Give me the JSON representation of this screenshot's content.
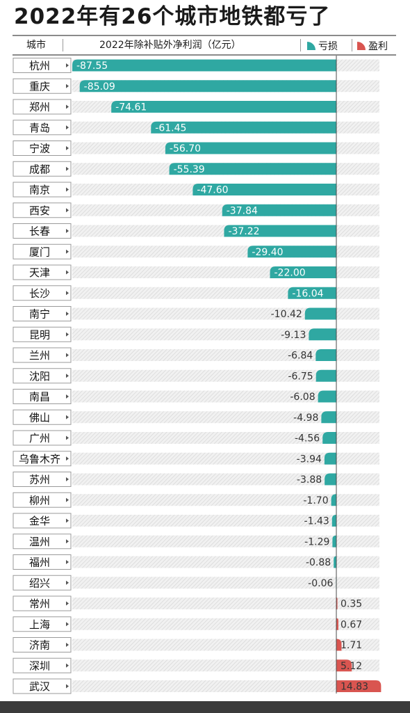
{
  "title": "2022年有26个城市地铁都亏了",
  "header": {
    "city_label": "城市",
    "metric_label": "2022年除补贴外净利润（亿元）"
  },
  "legend": [
    {
      "name": "亏损",
      "color": "#2fa8a2"
    },
    {
      "name": "盈利",
      "color": "#d95550"
    }
  ],
  "chart_data": {
    "type": "bar",
    "orientation": "horizontal",
    "title": "2022年有26个城市地铁都亏了",
    "xlabel": "2022年除补贴外净利润（亿元）",
    "ylabel": "城市",
    "categories": [
      "杭州",
      "重庆",
      "郑州",
      "青岛",
      "宁波",
      "成都",
      "南京",
      "西安",
      "长春",
      "厦门",
      "天津",
      "长沙",
      "南宁",
      "昆明",
      "兰州",
      "沈阳",
      "南昌",
      "佛山",
      "广州",
      "乌鲁木齐",
      "苏州",
      "柳州",
      "金华",
      "温州",
      "福州",
      "绍兴",
      "常州",
      "上海",
      "济南",
      "深圳",
      "武汉"
    ],
    "values": [
      -87.55,
      -85.09,
      -74.61,
      -61.45,
      -56.7,
      -55.39,
      -47.6,
      -37.84,
      -37.22,
      -29.4,
      -22.0,
      -16.04,
      -10.42,
      -9.13,
      -6.84,
      -6.75,
      -6.08,
      -4.98,
      -4.56,
      -3.94,
      -3.88,
      -1.7,
      -1.43,
      -1.29,
      -0.88,
      -0.06,
      0.35,
      0.67,
      1.71,
      5.12,
      14.83
    ],
    "value_labels": [
      "-87.55",
      "-85.09",
      "-74.61",
      "-61.45",
      "-56.70",
      "-55.39",
      "-47.60",
      "-37.84",
      "-37.22",
      "-29.40",
      "-22.00",
      "-16.04",
      "-10.42",
      "-9.13",
      "-6.84",
      "-6.75",
      "-6.08",
      "-4.98",
      "-4.56",
      "-3.94",
      "-3.88",
      "-1.70",
      "-1.43",
      "-1.29",
      "-0.88",
      "-0.06",
      "0.35",
      "0.67",
      "1.71",
      "5.12",
      "14.83"
    ],
    "series": [
      {
        "name": "亏损",
        "color": "#2fa8a2"
      },
      {
        "name": "盈利",
        "color": "#d95550"
      }
    ],
    "xlim": [
      -87.55,
      14.83
    ],
    "grid": false
  }
}
